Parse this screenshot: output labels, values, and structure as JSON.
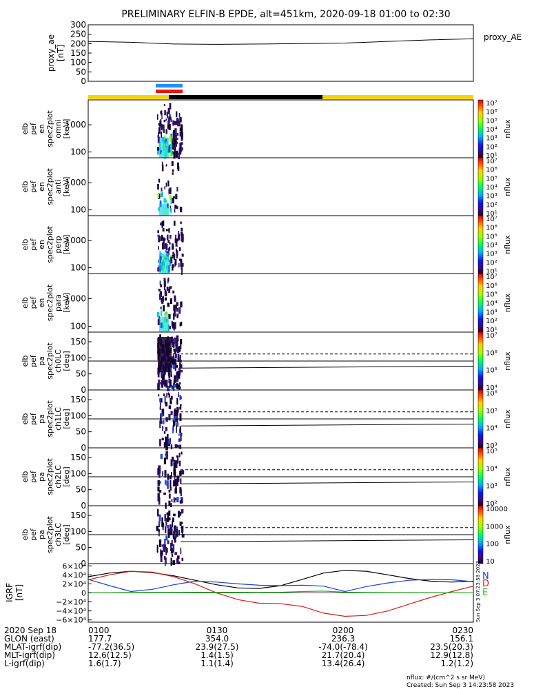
{
  "title": "PRELIMINARY ELFIN-B EPDE, alt=451km, 2020-09-18 01:00 to 02:30",
  "colors": {
    "yellow_bar": "#f5d40f",
    "black_bar": "#000000",
    "blue_marker": "#1e90ff",
    "red_marker": "#ee1111",
    "igrf_x": "#000000",
    "igrf_y": "#1f3fd6",
    "igrf_z": "#d81b1b",
    "igrf_e": "#22bb22"
  },
  "chart_data": [
    {
      "type": "line",
      "panel": "proxy_ae",
      "ylabel_lines": [
        "proxy_ae",
        "[nT]"
      ],
      "legend": "proxy_AE",
      "yticks": [
        "300",
        "250",
        "200",
        "150",
        "100",
        "50",
        "0"
      ],
      "ylim": [
        0,
        300
      ],
      "x_minutes": [
        0,
        10,
        20,
        30,
        40,
        50,
        60,
        70,
        80,
        90
      ],
      "values": [
        212,
        207,
        198,
        196,
        198,
        200,
        203,
        212,
        220,
        226
      ]
    },
    {
      "type": "heatmap",
      "panel": "spec_omni",
      "ylabel_lines": [
        "elb",
        "pef",
        "en",
        "spec2plot",
        "omni",
        "[keV]"
      ],
      "yticks": [
        "1000",
        "100"
      ],
      "yscale": "log",
      "colorbar": {
        "label": "nflux",
        "ticks": [
          "10⁷",
          "10⁶",
          "10⁵",
          "10⁴",
          "10³",
          "10²",
          "10¹"
        ]
      }
    },
    {
      "type": "heatmap",
      "panel": "spec_anti",
      "ylabel_lines": [
        "elb",
        "pef",
        "en",
        "spec2plot",
        "anti",
        "[keV]"
      ],
      "yticks": [
        "1000",
        "100"
      ],
      "yscale": "log",
      "colorbar": {
        "label": "nflux",
        "ticks": [
          "10⁷",
          "10⁶",
          "10⁵",
          "10⁴",
          "10³",
          "10²",
          "10¹"
        ]
      }
    },
    {
      "type": "heatmap",
      "panel": "spec_perp",
      "ylabel_lines": [
        "elb",
        "pef",
        "en",
        "spec2plot",
        "perp",
        "[keV]"
      ],
      "yticks": [
        "1000",
        "100"
      ],
      "yscale": "log",
      "colorbar": {
        "label": "nflux",
        "ticks": [
          "10⁷",
          "10⁶",
          "10⁵",
          "10⁴",
          "10³",
          "10²",
          "10¹"
        ]
      }
    },
    {
      "type": "heatmap",
      "panel": "spec_para",
      "ylabel_lines": [
        "elb",
        "pef",
        "en",
        "spec2plot",
        "para",
        "[keV]"
      ],
      "yticks": [
        "1000",
        "100"
      ],
      "yscale": "log",
      "colorbar": {
        "label": "nflux",
        "ticks": [
          "10⁷",
          "10⁶",
          "10⁵",
          "10⁴",
          "10³",
          "10²",
          "10¹"
        ]
      }
    },
    {
      "type": "heatmap",
      "panel": "pa_ch0",
      "ylabel_lines": [
        "elb",
        "pef",
        "pa",
        "spec2plot",
        "ch0LC",
        "[deg]"
      ],
      "yticks": [
        "150",
        "100",
        "50",
        "0"
      ],
      "ylim": [
        0,
        180
      ],
      "colorbar": {
        "label": "nflux",
        "ticks": [
          "10⁷",
          "10⁶",
          "10⁵",
          "10⁴"
        ]
      }
    },
    {
      "type": "heatmap",
      "panel": "pa_ch1",
      "ylabel_lines": [
        "elb",
        "pef",
        "pa",
        "spec2plot",
        "ch1LC",
        "[deg]"
      ],
      "yticks": [
        "150",
        "100",
        "50",
        "0"
      ],
      "ylim": [
        0,
        180
      ],
      "colorbar": {
        "label": "nflux",
        "ticks": [
          "10⁶",
          "10⁵",
          "10⁴",
          "10³"
        ]
      }
    },
    {
      "type": "heatmap",
      "panel": "pa_ch2",
      "ylabel_lines": [
        "elb",
        "pef",
        "pa",
        "spec2plot",
        "ch2LC",
        "[deg]"
      ],
      "yticks": [
        "150",
        "100",
        "50",
        "0"
      ],
      "ylim": [
        0,
        180
      ],
      "colorbar": {
        "label": "nflux",
        "ticks": [
          "10⁵",
          "10⁴",
          "10³",
          "10²"
        ]
      }
    },
    {
      "type": "heatmap",
      "panel": "pa_ch3",
      "ylabel_lines": [
        "elb",
        "pef",
        "pa",
        "spec2plot",
        "ch3LC",
        "[deg]"
      ],
      "yticks": [
        "150",
        "100",
        "50",
        "0"
      ],
      "ylim": [
        0,
        180
      ],
      "colorbar": {
        "label": "nflux",
        "ticks": [
          "10000",
          "1000",
          "100",
          "10"
        ]
      }
    },
    {
      "type": "line",
      "panel": "igrf",
      "ylabel_lines": [
        "IGRF",
        "[nT]"
      ],
      "yticks": [
        "6×10⁴",
        "4×10⁴",
        "2×10⁴",
        "0",
        "−2×10⁴",
        "−4×10⁴",
        "−6×10⁴"
      ],
      "ylim": [
        -65000,
        65000
      ],
      "legend_letters": [
        "N",
        "D",
        "E"
      ],
      "x_minutes": [
        0,
        5,
        10,
        15,
        20,
        25,
        30,
        35,
        40,
        45,
        50,
        55,
        60,
        65,
        70,
        75,
        80,
        85,
        90
      ],
      "series": [
        {
          "values": [
            36000,
            44000,
            48000,
            45000,
            38000,
            28000,
            18000,
            11000,
            10000,
            16000,
            30000,
            44000,
            50000,
            48000,
            40000,
            32000,
            26000,
            24000,
            26000
          ]
        },
        {
          "values": [
            30000,
            16000,
            3000,
            8000,
            18000,
            26000,
            24000,
            20000,
            17000,
            16000,
            17000,
            15000,
            3000,
            14000,
            22000,
            28000,
            30000,
            29000,
            25000
          ]
        },
        {
          "values": [
            29000,
            40000,
            48000,
            46000,
            36000,
            20000,
            0,
            -15000,
            -23000,
            -24000,
            -30000,
            -45000,
            -52000,
            -50000,
            -40000,
            -25000,
            -10000,
            3000,
            15000
          ]
        },
        {
          "values": [
            300,
            500,
            700,
            900,
            1100,
            1300,
            1400,
            1300,
            1100,
            1400,
            3000,
            4000,
            1500,
            800,
            600,
            500,
            400,
            300,
            200
          ]
        }
      ]
    }
  ],
  "footer": {
    "rows": [
      {
        "label": "2020 Sep 18",
        "values": [
          "0100",
          "0130",
          "0200",
          "0230"
        ]
      },
      {
        "label": "GLON (east)",
        "values": [
          "177.7",
          "354.0",
          "236.3",
          "156.1"
        ]
      },
      {
        "label": "MLAT-igrf(dip)",
        "values": [
          "-77.2(36.5)",
          "23.9(27.5)",
          "-74.0(-78.4)",
          "23.5(20.3)"
        ]
      },
      {
        "label": "MLT-igrf(dip)",
        "values": [
          "12.6(12.5)",
          "1.4(1.5)",
          "21.7(20.4)",
          "12.9(12.8)"
        ]
      },
      {
        "label": "L-igrf(dip)",
        "values": [
          "1.6(1.7)",
          "1.1(1.4)",
          "13.4(26.4)",
          "1.2(1.2)"
        ]
      }
    ],
    "units_note": "nflux: #/(cm^2 s sr MeV)",
    "created": "Created: Sun Sep  3 14:23:58 2023",
    "side_stamp": "Sun Sep  3 07:23:58 2023"
  }
}
